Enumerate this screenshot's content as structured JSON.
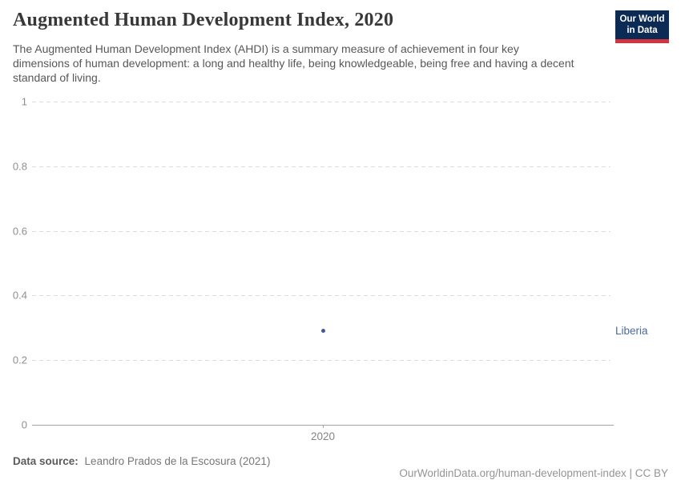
{
  "header": {
    "title": "Augmented Human Development Index, 2020",
    "subtitle": "The Augmented Human Development Index (AHDI) is a summary measure of achievement in four key dimensions of human development: a long and healthy life, being knowledgeable, being free and having a decent standard of living.",
    "logo": {
      "line1": "Our World",
      "line2": "in Data",
      "bg_color": "#0b2b55",
      "stripe_color": "#d0353f"
    }
  },
  "chart_data": {
    "type": "scatter",
    "title": "Augmented Human Development Index, 2020",
    "x": [
      2020
    ],
    "series": [
      {
        "name": "Liberia",
        "x": [
          2020
        ],
        "values": [
          0.29
        ],
        "color": "#3d5c94",
        "label_color": "#4c6a9c"
      }
    ],
    "xlabel": "",
    "ylabel": "",
    "ylim": [
      0,
      1
    ],
    "yticks": [
      {
        "label": "0",
        "value": 0
      },
      {
        "label": "0.2",
        "value": 0.2
      },
      {
        "label": "0.4",
        "value": 0.4
      },
      {
        "label": "0.6",
        "value": 0.6
      },
      {
        "label": "0.8",
        "value": 0.8
      },
      {
        "label": "1",
        "value": 1
      }
    ],
    "xtick_labels": [
      "2020"
    ],
    "grid": "horizontal-dashed",
    "legend_position": "entity-label-right-of-plot"
  },
  "footer": {
    "source_label": "Data source:",
    "source_value": "Leandro Prados de la Escosura (2021)",
    "url": "OurWorldinData.org/human-development-index",
    "license_suffix": " | CC BY"
  }
}
